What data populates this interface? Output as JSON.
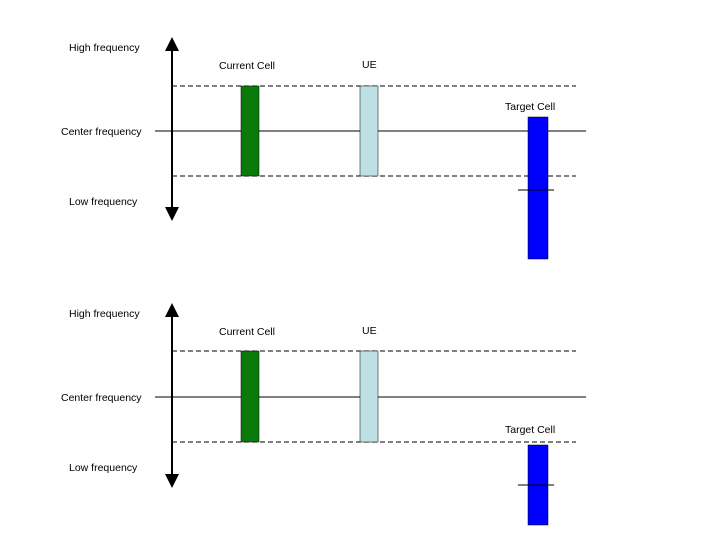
{
  "panels": [
    {
      "high_label": "High frequency",
      "center_label": "Center frequency",
      "low_label": "Low frequency",
      "current_cell_label": "Current Cell",
      "ue_label": "UE",
      "target_cell_label": "Target Cell"
    },
    {
      "high_label": "High frequency",
      "center_label": "Center frequency",
      "low_label": "Low frequency",
      "current_cell_label": "Current Cell",
      "ue_label": "UE",
      "target_cell_label": "Target Cell"
    }
  ],
  "colors": {
    "current_cell": "#0a7a0a",
    "ue": "#bfe0e3",
    "target_cell": "#0000ff",
    "lines": "#000000"
  }
}
